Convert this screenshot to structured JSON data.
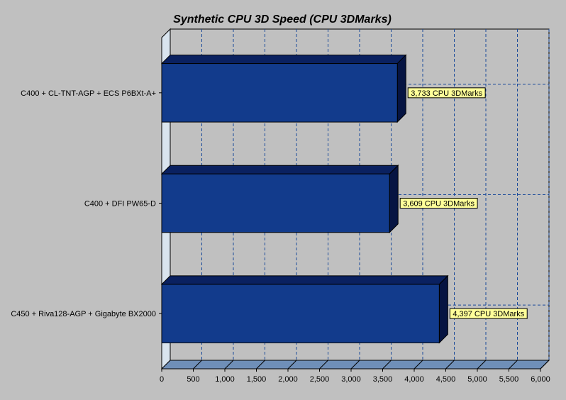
{
  "chart_data": {
    "type": "bar",
    "orientation": "horizontal",
    "style": "3d",
    "title": "Synthetic CPU 3D Speed  (CPU 3DMarks)",
    "xlabel": "",
    "ylabel": "",
    "categories": [
      "C400 + CL-TNT-AGP + ECS P6BXt-A+",
      "C400 + DFI PW65-D",
      "C450 + Riva128-AGP + Gigabyte BX2000"
    ],
    "values": [
      3733,
      3609,
      4397
    ],
    "data_labels": [
      "3,733 CPU 3DMarks",
      "3,609 CPU 3DMarks",
      "4,397 CPU 3DMarks"
    ],
    "xlim": [
      0,
      6000
    ],
    "x_ticks": [
      0,
      500,
      1000,
      1500,
      2000,
      2500,
      3000,
      3500,
      4000,
      4500,
      5000,
      5500,
      6000
    ],
    "x_tick_labels": [
      "0",
      "500",
      "1,000",
      "1,500",
      "2,000",
      "2,500",
      "3,000",
      "3,500",
      "4,000",
      "4,500",
      "5,000",
      "5,500",
      "6,000"
    ],
    "grid": true,
    "legend": "none",
    "colors": {
      "background": "#c0c0c0",
      "bar_front": "#123b8c",
      "bar_top": "#0a2160",
      "bar_side": "#061442",
      "floor": "#6f8fb8",
      "wall": "#d9e4ee",
      "grid": "#1a4a9a",
      "label_box": "#ffff99"
    }
  }
}
